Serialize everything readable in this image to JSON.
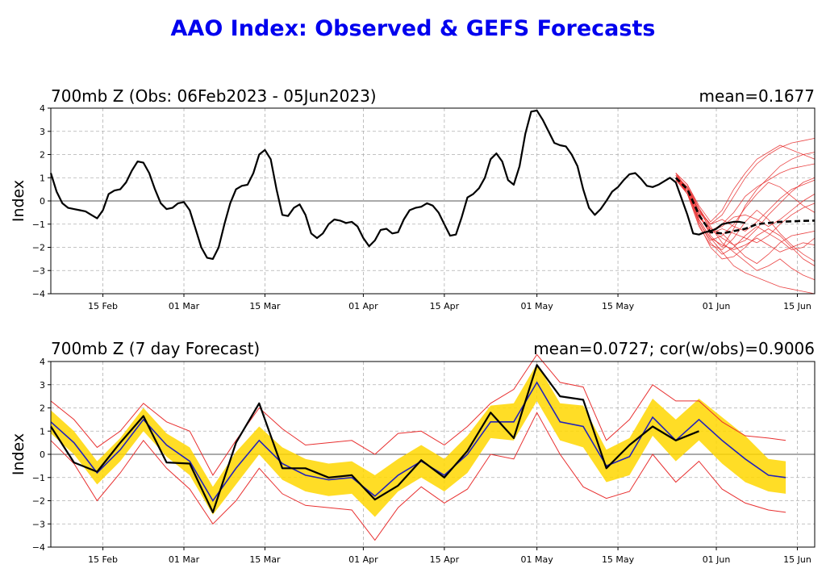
{
  "title": "AAO Index: Observed & GEFS Forecasts",
  "colors": {
    "title": "#0000ee",
    "obs": "#000000",
    "member": "#e83030",
    "ens_mean": "#2222bb",
    "spread": "#ffd700",
    "grid": "#b0b0b0"
  },
  "chart_data": [
    {
      "type": "line",
      "title": "700mb Z (Obs: 06Feb2023 - 05Jun2023)",
      "stat_label": "mean=0.1677",
      "ylabel": "Index",
      "ylim": [
        -4,
        4
      ],
      "yticks": [
        "4",
        "3",
        "2",
        "1",
        "0",
        "−1",
        "−2",
        "−3",
        "−4"
      ],
      "xlim_days": [
        0,
        132
      ],
      "xticks": [
        {
          "day": 9,
          "label": "15 Feb"
        },
        {
          "day": 23,
          "label": "01 Mar"
        },
        {
          "day": 37,
          "label": "15 Mar"
        },
        {
          "day": 54,
          "label": "01 Apr"
        },
        {
          "day": 68,
          "label": "15 Apr"
        },
        {
          "day": 84,
          "label": "01 May"
        },
        {
          "day": 98,
          "label": "15 May"
        },
        {
          "day": 115,
          "label": "01 Jun"
        },
        {
          "day": 129,
          "label": "15 Jun"
        }
      ],
      "observed": {
        "name": "Observed",
        "x": [
          0,
          1,
          2,
          3,
          4,
          5,
          6,
          7,
          8,
          9,
          10,
          11,
          12,
          13,
          14,
          15,
          16,
          17,
          18,
          19,
          20,
          21,
          22,
          23,
          24,
          25,
          26,
          27,
          28,
          29,
          30,
          31,
          32,
          33,
          34,
          35,
          36,
          37,
          38,
          39,
          40,
          41,
          42,
          43,
          44,
          45,
          46,
          47,
          48,
          49,
          50,
          51,
          52,
          53,
          54,
          55,
          56,
          57,
          58,
          59,
          60,
          61,
          62,
          63,
          64,
          65,
          66,
          67,
          68,
          69,
          70,
          71,
          72,
          73,
          74,
          75,
          76,
          77,
          78,
          79,
          80,
          81,
          82,
          83,
          84,
          85,
          86,
          87,
          88,
          89,
          90,
          91,
          92,
          93,
          94,
          95,
          96,
          97,
          98,
          99,
          100,
          101,
          102,
          103,
          104,
          105,
          106,
          107,
          108,
          109,
          110,
          111,
          112,
          113,
          114,
          115,
          116,
          117,
          118,
          119,
          120
        ],
        "y": [
          1.2,
          0.4,
          -0.1,
          -0.3,
          -0.35,
          -0.4,
          -0.45,
          -0.6,
          -0.75,
          -0.4,
          0.3,
          0.45,
          0.5,
          0.8,
          1.3,
          1.7,
          1.65,
          1.2,
          0.5,
          -0.1,
          -0.35,
          -0.3,
          -0.1,
          -0.05,
          -0.4,
          -1.2,
          -2.0,
          -2.45,
          -2.5,
          -2.0,
          -1.0,
          -0.1,
          0.5,
          0.65,
          0.7,
          1.2,
          2.0,
          2.2,
          1.8,
          0.5,
          -0.6,
          -0.65,
          -0.3,
          -0.15,
          -0.6,
          -1.4,
          -1.6,
          -1.4,
          -1.0,
          -0.8,
          -0.85,
          -0.95,
          -0.9,
          -1.1,
          -1.6,
          -1.95,
          -1.7,
          -1.25,
          -1.2,
          -1.4,
          -1.35,
          -0.8,
          -0.4,
          -0.3,
          -0.25,
          -0.1,
          -0.2,
          -0.5,
          -1.0,
          -1.5,
          -1.45,
          -0.7,
          0.15,
          0.3,
          0.55,
          1.0,
          1.8,
          2.05,
          1.7,
          0.9,
          0.7,
          1.5,
          2.9,
          3.85,
          3.9,
          3.5,
          3.0,
          2.5,
          2.4,
          2.35,
          2.0,
          1.5,
          0.5,
          -0.3,
          -0.6,
          -0.35,
          0.0,
          0.4,
          0.6,
          0.9,
          1.15,
          1.2,
          0.95,
          0.65,
          0.6,
          0.7,
          0.85,
          1.0,
          0.8,
          0.1,
          -0.6,
          -1.4,
          -1.45,
          -1.35,
          -1.3,
          -1.2,
          -1.0,
          -0.95,
          -0.9,
          -0.9,
          -0.95
        ]
      },
      "forecast_mean": {
        "name": "GEFS mean",
        "x": [
          108,
          110,
          112,
          114,
          116,
          118,
          120,
          122,
          124,
          126,
          128,
          130,
          132
        ],
        "y": [
          1.0,
          0.5,
          -0.6,
          -1.35,
          -1.4,
          -1.3,
          -1.2,
          -1.0,
          -0.95,
          -0.9,
          -0.88,
          -0.86,
          -0.85
        ]
      },
      "members": [
        {
          "name": "m01",
          "x": [
            108,
            110,
            112,
            114,
            116,
            118,
            120,
            122,
            124,
            126,
            128,
            130,
            132
          ],
          "y": [
            1.1,
            0.6,
            -0.5,
            -1.0,
            -0.6,
            0.2,
            1.0,
            1.6,
            2.0,
            2.3,
            2.5,
            2.6,
            2.7
          ]
        },
        {
          "name": "m02",
          "x": [
            108,
            110,
            112,
            114,
            116,
            118,
            120,
            122,
            124,
            126,
            128,
            130,
            132
          ],
          "y": [
            1.0,
            0.4,
            -0.8,
            -1.6,
            -2.2,
            -2.8,
            -3.1,
            -3.3,
            -3.5,
            -3.7,
            -3.8,
            -3.9,
            -4.0
          ]
        },
        {
          "name": "m03",
          "x": [
            108,
            110,
            112,
            114,
            116,
            118,
            120,
            122,
            124,
            126,
            128,
            130,
            132
          ],
          "y": [
            1.2,
            0.7,
            -0.2,
            -0.9,
            -0.4,
            0.5,
            1.2,
            1.8,
            2.1,
            2.4,
            2.2,
            2.0,
            1.8
          ]
        },
        {
          "name": "m04",
          "x": [
            108,
            110,
            112,
            114,
            116,
            118,
            120,
            122,
            124,
            126,
            128,
            130,
            132
          ],
          "y": [
            0.9,
            0.3,
            -1.0,
            -2.0,
            -2.5,
            -2.4,
            -2.0,
            -1.5,
            -1.2,
            -1.5,
            -2.0,
            -2.5,
            -2.8
          ]
        },
        {
          "name": "m05",
          "x": [
            108,
            110,
            112,
            114,
            116,
            118,
            120,
            122,
            124,
            126,
            128,
            130,
            132
          ],
          "y": [
            1.1,
            0.5,
            -0.7,
            -1.3,
            -1.0,
            -0.5,
            0.2,
            0.6,
            0.9,
            1.2,
            1.4,
            1.5,
            1.6
          ]
        },
        {
          "name": "m06",
          "x": [
            108,
            110,
            112,
            114,
            116,
            118,
            120,
            122,
            124,
            126,
            128,
            130,
            132
          ],
          "y": [
            1.0,
            0.6,
            -0.3,
            -1.1,
            -1.8,
            -2.2,
            -2.6,
            -3.0,
            -2.8,
            -2.5,
            -2.9,
            -3.2,
            -3.4
          ]
        },
        {
          "name": "m07",
          "x": [
            108,
            110,
            112,
            114,
            116,
            118,
            120,
            122,
            124,
            126,
            128,
            130,
            132
          ],
          "y": [
            1.2,
            0.4,
            -0.9,
            -1.7,
            -1.5,
            -1.0,
            -0.3,
            0.3,
            0.8,
            0.6,
            0.2,
            -0.2,
            -0.5
          ]
        },
        {
          "name": "m08",
          "x": [
            108,
            110,
            112,
            114,
            116,
            118,
            120,
            122,
            124,
            126,
            128,
            130,
            132
          ],
          "y": [
            1.0,
            0.5,
            -0.4,
            -1.2,
            -1.6,
            -1.9,
            -1.7,
            -1.2,
            -0.6,
            -0.1,
            0.4,
            0.8,
            1.0
          ]
        },
        {
          "name": "m09",
          "x": [
            108,
            110,
            112,
            114,
            116,
            118,
            120,
            122,
            124,
            126,
            128,
            130,
            132
          ],
          "y": [
            1.1,
            0.3,
            -1.1,
            -1.9,
            -2.1,
            -1.6,
            -0.9,
            -0.4,
            -0.8,
            -1.4,
            -1.9,
            -2.3,
            -2.6
          ]
        },
        {
          "name": "m10",
          "x": [
            108,
            110,
            112,
            114,
            116,
            118,
            120,
            122,
            124,
            126,
            128,
            130,
            132
          ],
          "y": [
            0.9,
            0.6,
            -0.6,
            -1.4,
            -1.2,
            -1.4,
            -1.6,
            -1.8,
            -1.5,
            -1.0,
            -0.6,
            -0.3,
            -0.1
          ]
        },
        {
          "name": "m11",
          "x": [
            108,
            110,
            112,
            114,
            116,
            118,
            120,
            122,
            124,
            126,
            128,
            130,
            132
          ],
          "y": [
            1.2,
            0.5,
            -0.5,
            -1.5,
            -2.0,
            -1.2,
            -0.2,
            0.5,
            1.0,
            1.5,
            1.8,
            2.0,
            2.1
          ]
        },
        {
          "name": "m12",
          "x": [
            108,
            110,
            112,
            114,
            116,
            118,
            120,
            122,
            124,
            126,
            128,
            130,
            132
          ],
          "y": [
            1.0,
            0.4,
            -0.7,
            -1.2,
            -1.4,
            -1.9,
            -2.4,
            -2.7,
            -2.3,
            -1.8,
            -1.5,
            -1.4,
            -1.3
          ]
        },
        {
          "name": "m13",
          "x": [
            108,
            110,
            112,
            114,
            116,
            118,
            120,
            122,
            124,
            126,
            128,
            130,
            132
          ],
          "y": [
            1.1,
            0.6,
            -0.4,
            -1.0,
            -0.8,
            -1.1,
            -1.3,
            -0.9,
            -0.4,
            0.1,
            0.5,
            0.7,
            0.9
          ]
        },
        {
          "name": "m14",
          "x": [
            108,
            110,
            112,
            114,
            116,
            118,
            120,
            122,
            124,
            126,
            128,
            130,
            132
          ],
          "y": [
            1.0,
            0.3,
            -0.8,
            -1.6,
            -1.9,
            -2.1,
            -1.9,
            -1.6,
            -1.9,
            -2.2,
            -2.0,
            -1.8,
            -1.9
          ]
        },
        {
          "name": "m15",
          "x": [
            108,
            110,
            112,
            114,
            116,
            118,
            120,
            122,
            124,
            126,
            128,
            130,
            132
          ],
          "y": [
            1.2,
            0.7,
            -0.3,
            -1.3,
            -1.1,
            -0.7,
            -0.6,
            -0.8,
            -1.1,
            -0.8,
            -0.4,
            0.0,
            0.3
          ]
        },
        {
          "name": "m16",
          "x": [
            108,
            110,
            112,
            114,
            116,
            118,
            120,
            122,
            124,
            126,
            128,
            130,
            132
          ],
          "y": [
            0.9,
            0.4,
            -0.9,
            -1.8,
            -2.3,
            -2.0,
            -1.5,
            -1.1,
            -1.4,
            -1.7,
            -2.1,
            -2.0,
            -1.6
          ]
        }
      ]
    },
    {
      "type": "line",
      "title": "700mb Z (7 day Forecast)",
      "stat_label": "mean=0.0727; cor(w/obs)=0.9006",
      "ylabel": "Index",
      "ylim": [
        -4,
        4
      ],
      "yticks": [
        "4",
        "3",
        "2",
        "1",
        "0",
        "−1",
        "−2",
        "−3",
        "−4"
      ],
      "xlim_days": [
        0,
        132
      ],
      "xticks": [
        {
          "day": 9,
          "label": "15 Feb"
        },
        {
          "day": 23,
          "label": "01 Mar"
        },
        {
          "day": 37,
          "label": "15 Mar"
        },
        {
          "day": 54,
          "label": "01 Apr"
        },
        {
          "day": 68,
          "label": "15 Apr"
        },
        {
          "day": 84,
          "label": "01 May"
        },
        {
          "day": 98,
          "label": "15 May"
        },
        {
          "day": 115,
          "label": "01 Jun"
        },
        {
          "day": 129,
          "label": "15 Jun"
        }
      ],
      "x": [
        0,
        4,
        8,
        12,
        16,
        20,
        24,
        28,
        32,
        36,
        40,
        44,
        48,
        52,
        56,
        60,
        64,
        68,
        72,
        76,
        80,
        84,
        88,
        92,
        96,
        100,
        104,
        108,
        112,
        116,
        120,
        124,
        127
      ],
      "observed": [
        1.2,
        -0.35,
        -0.75,
        0.5,
        1.65,
        -0.35,
        -0.4,
        -2.5,
        0.5,
        2.2,
        -0.6,
        -0.6,
        -1.0,
        -0.9,
        -1.95,
        -1.35,
        -0.25,
        -1.0,
        0.15,
        1.8,
        0.7,
        3.85,
        2.5,
        2.35,
        -0.6,
        0.4,
        1.2,
        0.6,
        1.0,
        null,
        null,
        null,
        null
      ],
      "forecast_mean": [
        1.4,
        0.5,
        -0.8,
        0.2,
        1.5,
        0.4,
        -0.3,
        -2.0,
        -0.6,
        0.6,
        -0.4,
        -0.9,
        -1.1,
        -1.0,
        -1.8,
        -0.9,
        -0.3,
        -0.9,
        0.0,
        1.4,
        1.4,
        3.1,
        1.4,
        1.2,
        -0.5,
        -0.1,
        1.6,
        0.6,
        1.5,
        0.6,
        -0.2,
        -0.9,
        -1.0
      ],
      "spread_low": [
        0.9,
        0.0,
        -1.3,
        -0.3,
        1.0,
        -0.1,
        -0.9,
        -2.6,
        -1.3,
        0.0,
        -1.1,
        -1.6,
        -1.8,
        -1.7,
        -2.7,
        -1.6,
        -1.0,
        -1.6,
        -0.8,
        0.7,
        0.6,
        2.3,
        0.6,
        0.3,
        -1.2,
        -0.9,
        0.8,
        -0.3,
        0.6,
        -0.4,
        -1.2,
        -1.6,
        -1.7
      ],
      "spread_high": [
        1.9,
        1.0,
        -0.3,
        0.7,
        2.0,
        0.9,
        0.3,
        -1.4,
        0.1,
        1.2,
        0.3,
        -0.2,
        -0.4,
        -0.3,
        -0.9,
        -0.2,
        0.4,
        -0.2,
        0.8,
        2.1,
        2.2,
        3.9,
        2.2,
        2.1,
        0.2,
        0.7,
        2.4,
        1.5,
        2.4,
        1.6,
        0.8,
        -0.2,
        -0.3
      ],
      "member_low": [
        0.6,
        -0.4,
        -2.0,
        -0.8,
        0.6,
        -0.6,
        -1.5,
        -3.0,
        -2.0,
        -0.6,
        -1.7,
        -2.2,
        -2.3,
        -2.4,
        -3.7,
        -2.3,
        -1.4,
        -2.1,
        -1.5,
        0.0,
        -0.2,
        1.8,
        0.0,
        -1.4,
        -1.9,
        -1.6,
        0.0,
        -1.2,
        -0.3,
        -1.5,
        -2.1,
        -2.4,
        -2.5
      ],
      "member_high": [
        2.3,
        1.5,
        0.3,
        1.0,
        2.2,
        1.4,
        1.0,
        -0.9,
        0.6,
        2.0,
        1.1,
        0.4,
        0.5,
        0.6,
        0.0,
        0.9,
        1.0,
        0.4,
        1.2,
        2.2,
        2.8,
        4.3,
        3.1,
        2.9,
        0.6,
        1.5,
        3.0,
        2.3,
        2.3,
        1.4,
        0.8,
        0.7,
        0.6
      ]
    }
  ]
}
